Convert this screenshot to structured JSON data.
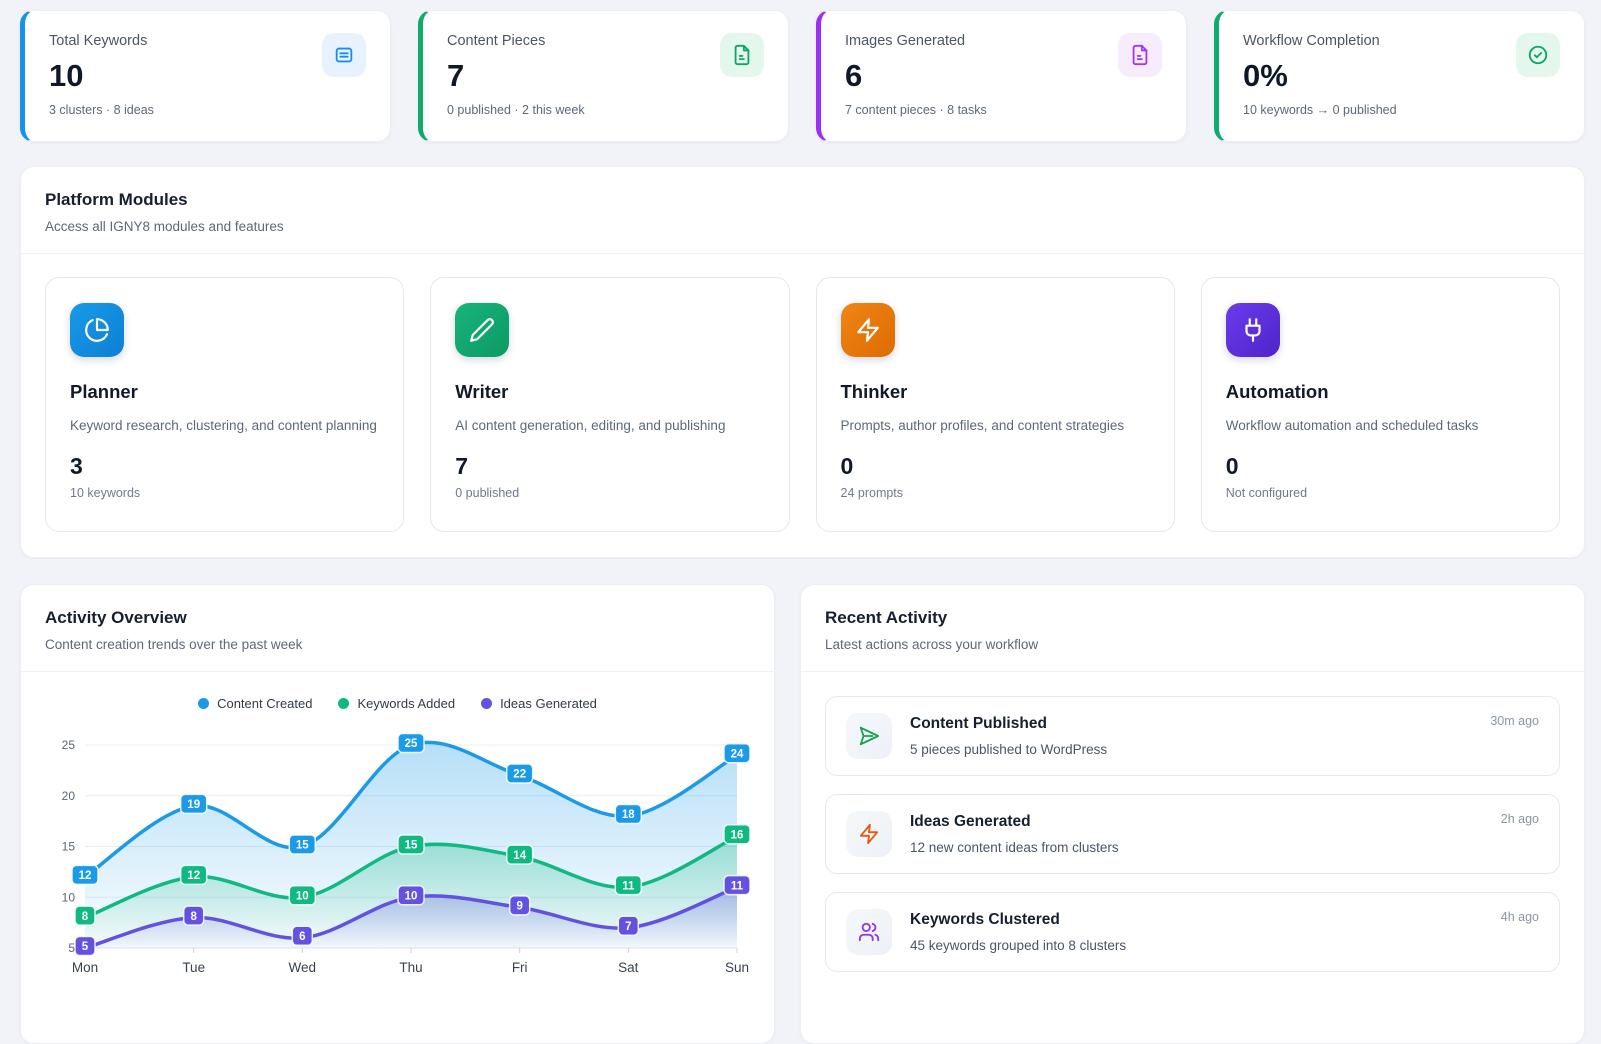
{
  "stats": [
    {
      "label": "Total Keywords",
      "value": "10",
      "sub": "3 clusters · 8 ideas",
      "accent": "#1593ea",
      "icon": "list-icon",
      "icon_bg": "#e8f2fd",
      "icon_color": "#1b8ee8"
    },
    {
      "label": "Content Pieces",
      "value": "7",
      "sub": "0 published · 2 this week",
      "accent": "#0fab6c",
      "icon": "file-text-icon",
      "icon_bg": "#e3f7ec",
      "icon_color": "#12a467"
    },
    {
      "label": "Images Generated",
      "value": "6",
      "sub": "7 content pieces · 8 tasks",
      "accent": "#9b30f2",
      "icon": "file-text-icon",
      "icon_bg": "#f6ecfe",
      "icon_color": "#a437ea"
    },
    {
      "label": "Workflow Completion",
      "value": "0%",
      "sub": "10 keywords → 0 published",
      "accent": "#0fab6c",
      "icon": "check-circle-icon",
      "icon_bg": "#e3f7ec",
      "icon_color": "#12a467"
    }
  ],
  "modules_section": {
    "title": "Platform Modules",
    "subtitle": "Access all IGNY8 modules and features",
    "modules": [
      {
        "name": "Planner",
        "description": "Keyword research, clustering, and content planning",
        "stat": "3",
        "sub": "10 keywords",
        "icon": "pie-chart-icon",
        "color": "#199ae8",
        "color2": "#0d7fd4"
      },
      {
        "name": "Writer",
        "description": "AI content generation, editing, and publishing",
        "stat": "7",
        "sub": "0 published",
        "icon": "pencil-icon",
        "color": "#16b47c",
        "color2": "#0d9a63"
      },
      {
        "name": "Thinker",
        "description": "Prompts, author profiles, and content strategies",
        "stat": "0",
        "sub": "24 prompts",
        "icon": "lightning-icon",
        "color": "#f08514",
        "color2": "#dd6c02"
      },
      {
        "name": "Automation",
        "description": "Workflow automation and scheduled tasks",
        "stat": "0",
        "sub": "Not configured",
        "icon": "plug-icon",
        "color": "#6a3bee",
        "color2": "#4f24c8"
      }
    ]
  },
  "activity_overview": {
    "title": "Activity Overview",
    "subtitle": "Content creation trends over the past week"
  },
  "chart_data": {
    "type": "area",
    "x": [
      "Mon",
      "Tue",
      "Wed",
      "Thu",
      "Fri",
      "Sat",
      "Sun"
    ],
    "series": [
      {
        "name": "Content Created",
        "color": "#1b9ae8",
        "values": [
          12,
          19,
          15,
          25,
          22,
          18,
          24
        ]
      },
      {
        "name": "Keywords Added",
        "color": "#10b981",
        "values": [
          8,
          12,
          10,
          15,
          14,
          11,
          16
        ]
      },
      {
        "name": "Ideas Generated",
        "color": "#6351e0",
        "values": [
          5,
          8,
          6,
          10,
          9,
          7,
          11
        ]
      }
    ],
    "yticks": [
      5,
      10,
      15,
      20,
      25
    ],
    "ylim": [
      5,
      25
    ],
    "grid": true,
    "legend_position": "top",
    "point_labels": true
  },
  "recent_activity": {
    "title": "Recent Activity",
    "subtitle": "Latest actions across your workflow",
    "items": [
      {
        "title": "Content Published",
        "description": "5 pieces published to WordPress",
        "time": "30m ago",
        "icon": "send-icon",
        "icon_color": "#17a34b"
      },
      {
        "title": "Ideas Generated",
        "description": "12 new content ideas from clusters",
        "time": "2h ago",
        "icon": "lightning-icon",
        "icon_color": "#ea580c"
      },
      {
        "title": "Keywords Clustered",
        "description": "45 keywords grouped into 8 clusters",
        "time": "4h ago",
        "icon": "users-icon",
        "icon_color": "#9333ea"
      }
    ]
  }
}
